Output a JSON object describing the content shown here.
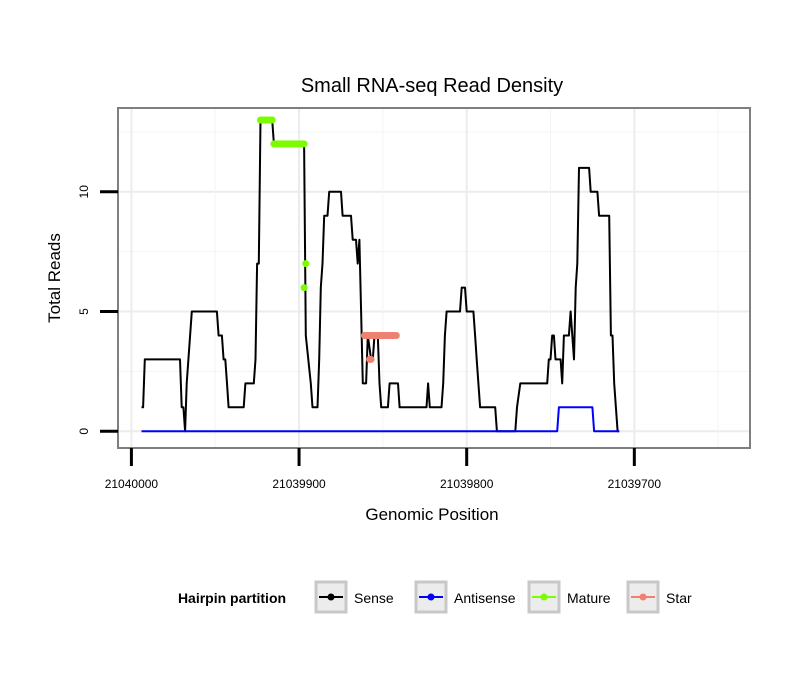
{
  "chart_data": {
    "type": "line",
    "title": "Small RNA-seq Read Density",
    "xlabel": "Genomic Position",
    "ylabel": "Total Reads",
    "x_reversed": true,
    "xlim": [
      21040008,
      21039631
    ],
    "ylim": [
      -0.7,
      13.5
    ],
    "x_ticks": [
      21040000,
      21039900,
      21039800,
      21039700
    ],
    "x_tick_labels": [
      "21040000",
      "21039900",
      "21039800",
      "21039700"
    ],
    "y_ticks": [
      0,
      5,
      10
    ],
    "y_tick_labels": [
      "0",
      "5",
      "10"
    ],
    "grid": true,
    "legend": {
      "title": "Hairpin partition",
      "position": "bottom",
      "entries": [
        {
          "label": "Sense",
          "color": "#000000"
        },
        {
          "label": "Antisense",
          "color": "#0000ff"
        },
        {
          "label": "Mature",
          "color": "#7cfc00"
        },
        {
          "label": "Star",
          "color": "#f08070"
        }
      ]
    },
    "series": [
      {
        "name": "Sense",
        "kind": "line",
        "color": "#000000",
        "points": [
          [
            21039994,
            1
          ],
          [
            21039993,
            1
          ],
          [
            21039992,
            3
          ],
          [
            21039971,
            3
          ],
          [
            21039970,
            1
          ],
          [
            21039969,
            1
          ],
          [
            21039968,
            0
          ],
          [
            21039967,
            2
          ],
          [
            21039966,
            3
          ],
          [
            21039965,
            4
          ],
          [
            21039964,
            5
          ],
          [
            21039949,
            5
          ],
          [
            21039948,
            4
          ],
          [
            21039946,
            4
          ],
          [
            21039945,
            3
          ],
          [
            21039944,
            3
          ],
          [
            21039943,
            2
          ],
          [
            21039942,
            1
          ],
          [
            21039933,
            1
          ],
          [
            21039932,
            2
          ],
          [
            21039927,
            2
          ],
          [
            21039926,
            3
          ],
          [
            21039925,
            7
          ],
          [
            21039924,
            7
          ],
          [
            21039923,
            13
          ],
          [
            21039916,
            13
          ],
          [
            21039915,
            12
          ],
          [
            21039897,
            12
          ],
          [
            21039896,
            4
          ],
          [
            21039893,
            2
          ],
          [
            21039892,
            1
          ],
          [
            21039889,
            1
          ],
          [
            21039888,
            3
          ],
          [
            21039887,
            6
          ],
          [
            21039886,
            7
          ],
          [
            21039885,
            9
          ],
          [
            21039883,
            9
          ],
          [
            21039882,
            10
          ],
          [
            21039875,
            10
          ],
          [
            21039874,
            9
          ],
          [
            21039869,
            9
          ],
          [
            21039868,
            8
          ],
          [
            21039866,
            8
          ],
          [
            21039865,
            7
          ],
          [
            21039864,
            8
          ],
          [
            21039863,
            5
          ],
          [
            21039862,
            2
          ],
          [
            21039860,
            2
          ],
          [
            21039859,
            4
          ],
          [
            21039857,
            3
          ],
          [
            21039856,
            3
          ],
          [
            21039855,
            4
          ],
          [
            21039854,
            4
          ],
          [
            21039853,
            4
          ],
          [
            21039852,
            2
          ],
          [
            21039851,
            1
          ],
          [
            21039847,
            1
          ],
          [
            21039846,
            2
          ],
          [
            21039841,
            2
          ],
          [
            21039840,
            1
          ],
          [
            21039824,
            1
          ],
          [
            21039823,
            2
          ],
          [
            21039822,
            1
          ],
          [
            21039815,
            1
          ],
          [
            21039814,
            2
          ],
          [
            21039813,
            4
          ],
          [
            21039812,
            5
          ],
          [
            21039804,
            5
          ],
          [
            21039803,
            6
          ],
          [
            21039801,
            6
          ],
          [
            21039800,
            5
          ],
          [
            21039796,
            5
          ],
          [
            21039795,
            4
          ],
          [
            21039794,
            3
          ],
          [
            21039793,
            2
          ],
          [
            21039792,
            1
          ],
          [
            21039783,
            1
          ],
          [
            21039782,
            0
          ],
          [
            21039771,
            0
          ],
          [
            21039770,
            1
          ],
          [
            21039768,
            2
          ],
          [
            21039752,
            2
          ],
          [
            21039751,
            3
          ],
          [
            21039750,
            3
          ],
          [
            21039749,
            4
          ],
          [
            21039748,
            4
          ],
          [
            21039747,
            3
          ],
          [
            21039744,
            3
          ],
          [
            21039743,
            2
          ],
          [
            21039742,
            4
          ],
          [
            21039739,
            4
          ],
          [
            21039738,
            5
          ],
          [
            21039737,
            4
          ],
          [
            21039736,
            3
          ],
          [
            21039735,
            6
          ],
          [
            21039734,
            7
          ],
          [
            21039733,
            11
          ],
          [
            21039727,
            11
          ],
          [
            21039726,
            10
          ],
          [
            21039722,
            10
          ],
          [
            21039721,
            9
          ],
          [
            21039715,
            9
          ],
          [
            21039714,
            4
          ],
          [
            21039713,
            4
          ],
          [
            21039712,
            2
          ],
          [
            21039711,
            1
          ],
          [
            21039710,
            0
          ],
          [
            21039709,
            0
          ]
        ]
      },
      {
        "name": "Antisense",
        "kind": "line",
        "color": "#0000ff",
        "points": [
          [
            21039994,
            0
          ],
          [
            21039746,
            0
          ],
          [
            21039745,
            1
          ],
          [
            21039725,
            1
          ],
          [
            21039724,
            0
          ],
          [
            21039709,
            0
          ]
        ]
      },
      {
        "name": "Mature",
        "kind": "points",
        "color": "#7cfc00",
        "points": [
          [
            21039923,
            13
          ],
          [
            21039922,
            13
          ],
          [
            21039921,
            13
          ],
          [
            21039920,
            13
          ],
          [
            21039919,
            13
          ],
          [
            21039918,
            13
          ],
          [
            21039917,
            13
          ],
          [
            21039916,
            13
          ],
          [
            21039915,
            12
          ],
          [
            21039914,
            12
          ],
          [
            21039913,
            12
          ],
          [
            21039912,
            12
          ],
          [
            21039911,
            12
          ],
          [
            21039910,
            12
          ],
          [
            21039909,
            12
          ],
          [
            21039908,
            12
          ],
          [
            21039907,
            12
          ],
          [
            21039906,
            12
          ],
          [
            21039905,
            12
          ],
          [
            21039904,
            12
          ],
          [
            21039903,
            12
          ],
          [
            21039902,
            12
          ],
          [
            21039901,
            12
          ],
          [
            21039900,
            12
          ],
          [
            21039899,
            12
          ],
          [
            21039898,
            12
          ],
          [
            21039897,
            12
          ],
          [
            21039896,
            7
          ],
          [
            21039897,
            6
          ]
        ]
      },
      {
        "name": "Star",
        "kind": "points",
        "color": "#f08070",
        "points": [
          [
            21039861,
            4
          ],
          [
            21039860,
            4
          ],
          [
            21039859,
            4
          ],
          [
            21039858,
            4
          ],
          [
            21039857,
            4
          ],
          [
            21039856,
            4
          ],
          [
            21039855,
            4
          ],
          [
            21039854,
            4
          ],
          [
            21039853,
            4
          ],
          [
            21039852,
            4
          ],
          [
            21039851,
            4
          ],
          [
            21039850,
            4
          ],
          [
            21039849,
            4
          ],
          [
            21039848,
            4
          ],
          [
            21039847,
            4
          ],
          [
            21039846,
            4
          ],
          [
            21039845,
            4
          ],
          [
            21039844,
            4
          ],
          [
            21039843,
            4
          ],
          [
            21039842,
            4
          ],
          [
            21039858,
            3
          ],
          [
            21039857,
            3
          ]
        ]
      }
    ]
  }
}
